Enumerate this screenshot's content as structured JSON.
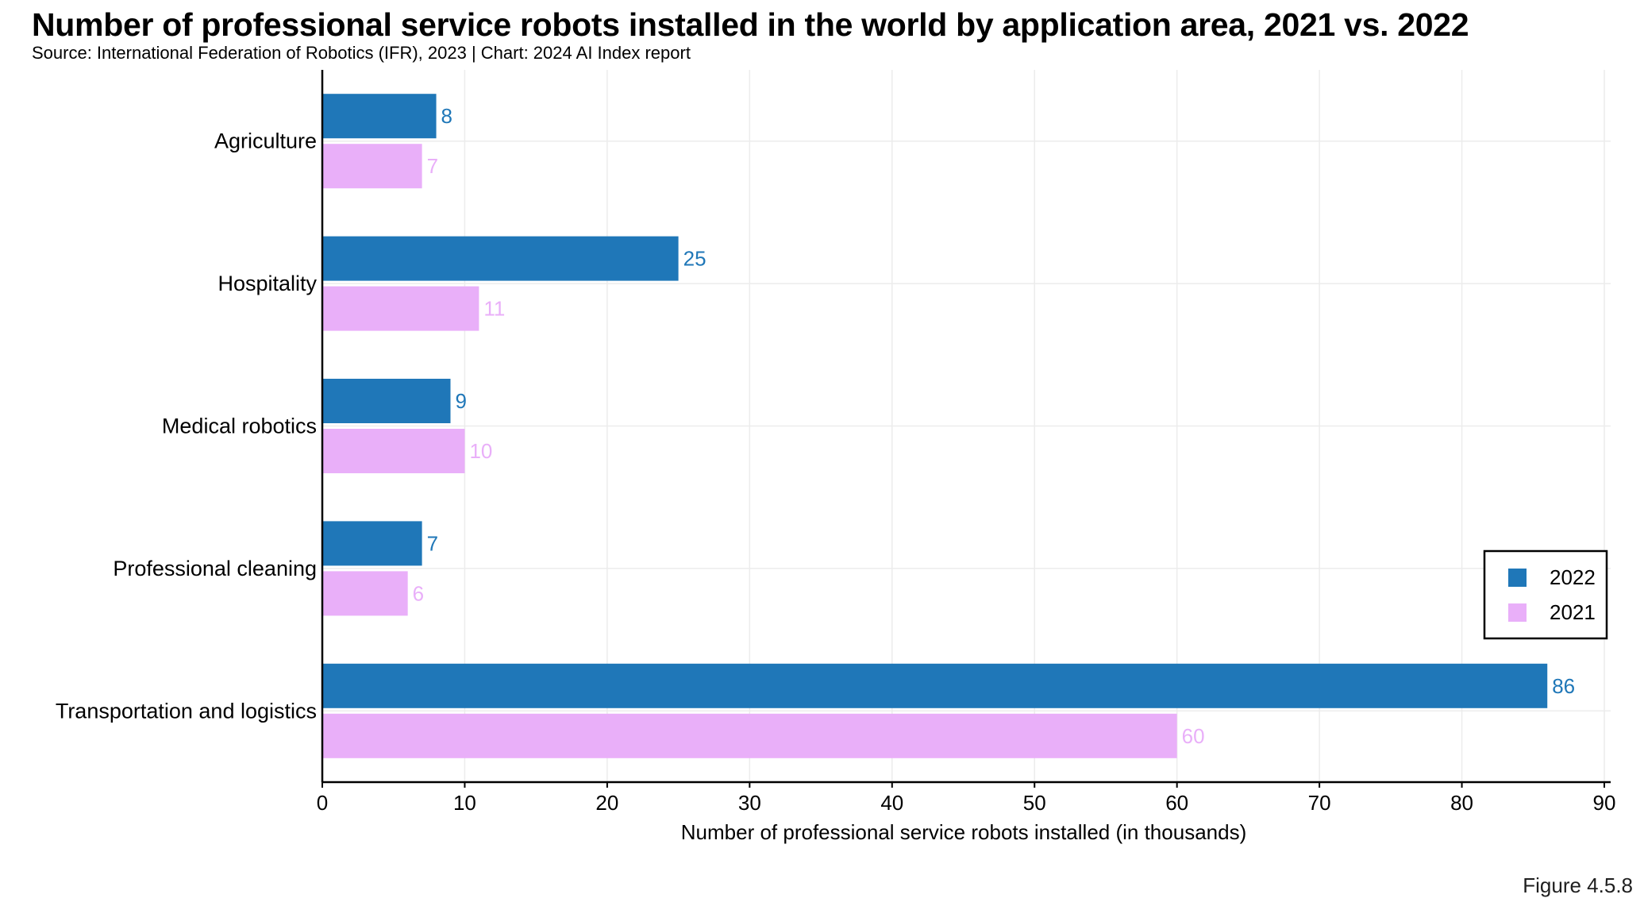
{
  "title": "Number of professional service robots installed in the world by application area, 2021 vs. 2022",
  "subtitle": "Source: International Federation of Robotics (IFR), 2023 | Chart: 2024 AI Index report",
  "figure_label": "Figure 4.5.8",
  "chart_data": {
    "type": "bar",
    "orientation": "horizontal",
    "categories": [
      "Agriculture",
      "Hospitality",
      "Medical robotics",
      "Professional cleaning",
      "Transportation and logistics"
    ],
    "series": [
      {
        "name": "2022",
        "color": "#1f77b8",
        "values": [
          8,
          25,
          9,
          7,
          86
        ]
      },
      {
        "name": "2021",
        "color": "#e9aff9",
        "values": [
          7,
          11,
          10,
          6,
          60
        ]
      }
    ],
    "xlabel": "Number of professional service robots installed (in thousands)",
    "ylabel": "",
    "xlim": [
      0,
      90
    ],
    "xticks": [
      0,
      10,
      20,
      30,
      40,
      50,
      60,
      70,
      80,
      90
    ],
    "grid": true,
    "legend_position": "bottom-right",
    "data_labels": true
  }
}
